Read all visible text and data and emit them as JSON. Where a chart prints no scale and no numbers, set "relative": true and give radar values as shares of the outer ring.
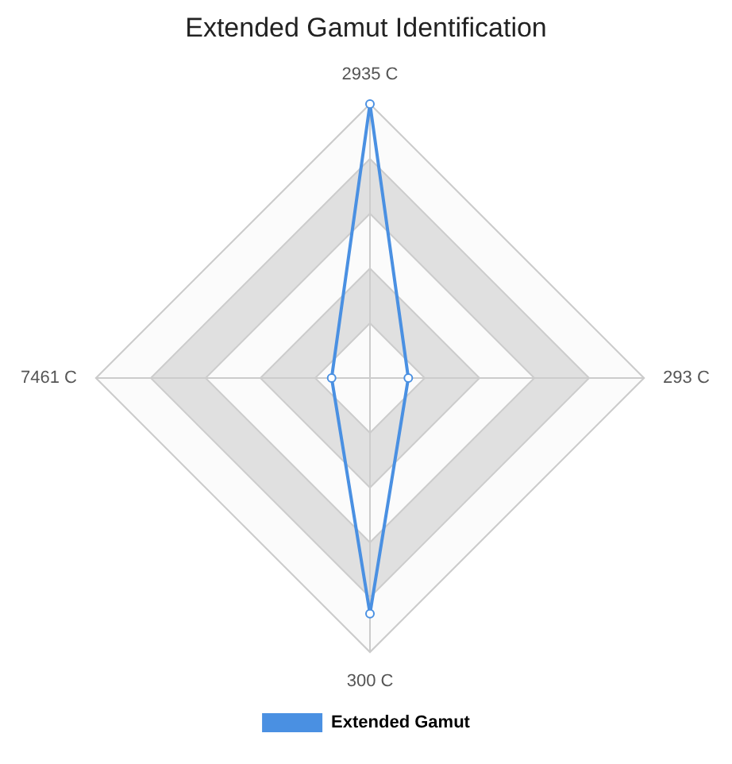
{
  "chart_data": {
    "type": "radar",
    "title": "Extended Gamut Identification",
    "categories": [
      "2935 C",
      "293 C",
      "300 C",
      "7461 C"
    ],
    "relative": true,
    "legend": "bottom",
    "marker": "circle",
    "series": [
      {
        "name": "Extended Gamut",
        "color": "#4a90e2",
        "values": [
          1.0,
          0.14,
          0.86,
          0.14
        ]
      }
    ]
  }
}
